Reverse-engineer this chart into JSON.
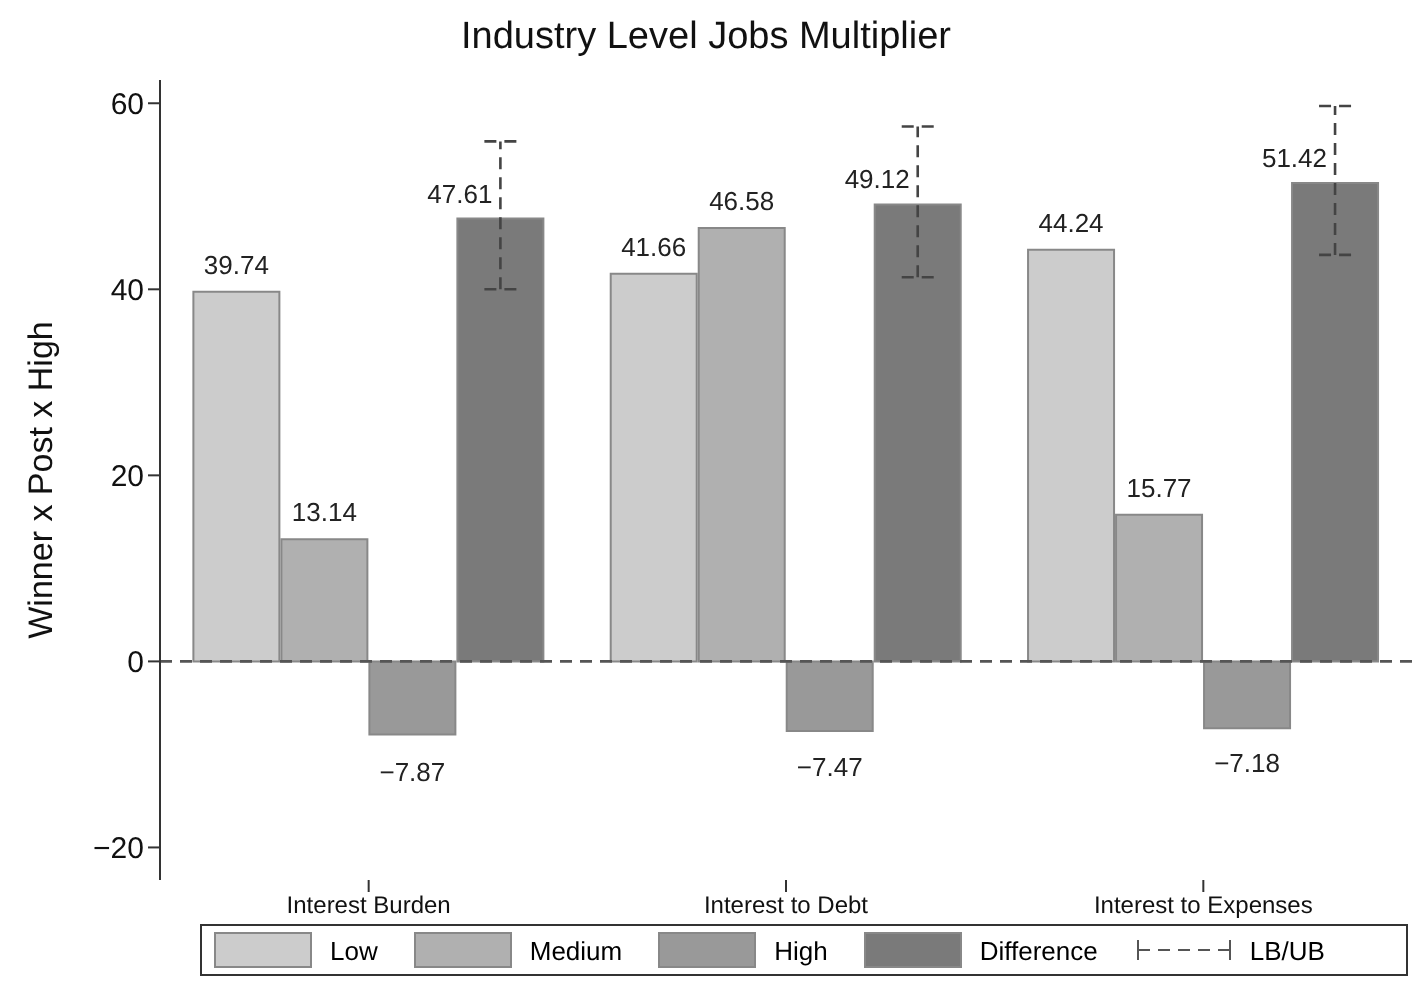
{
  "chart_data": {
    "type": "bar",
    "title": "Industry Level Jobs Multiplier",
    "ylabel": "Winner x Post x High",
    "categories": [
      "Interest Burden",
      "Interest to Debt",
      "Interest to Expenses"
    ],
    "series": [
      {
        "name": "Low",
        "color": "#cccccc",
        "values": [
          39.74,
          41.66,
          44.24
        ]
      },
      {
        "name": "Medium",
        "color": "#b0b0b0",
        "values": [
          13.14,
          46.58,
          15.77
        ]
      },
      {
        "name": "High",
        "color": "#999999",
        "values": [
          -7.87,
          -7.47,
          -7.18
        ]
      },
      {
        "name": "Difference",
        "color": "#7a7a7a",
        "values": [
          47.61,
          49.12,
          51.42
        ],
        "errors": [
          [
            40.0,
            55.9
          ],
          [
            41.3,
            57.5
          ],
          [
            43.7,
            59.7
          ]
        ]
      },
      {
        "name": "LB/UB",
        "type": "line",
        "color": "#555555",
        "line_style": "dashed",
        "values": [
          null,
          null,
          null
        ]
      }
    ],
    "data_labels": true,
    "ylim": [
      -23.5,
      62.5
    ],
    "yticks": [
      {
        "value": -20,
        "label": "−20"
      },
      0,
      20,
      40,
      60
    ],
    "ref_lines": [
      {
        "axis": "y",
        "value": 0,
        "color": "#555555",
        "line_style": "dashed"
      }
    ],
    "grid": false,
    "legend": "bottom"
  }
}
